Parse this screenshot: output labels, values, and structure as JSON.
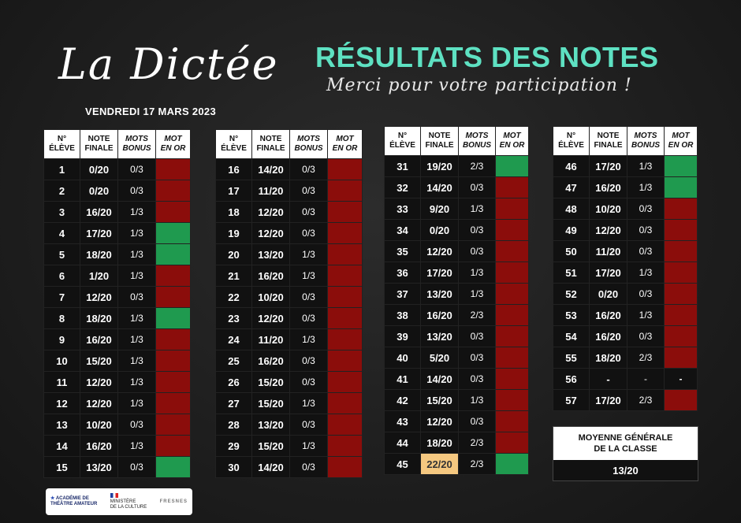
{
  "header": {
    "logo_text": "La Dictée",
    "date": "VENDREDI 17 MARS 2023",
    "title": "RÉSULTATS DES NOTES",
    "subtitle": "Merci pour votre participation !"
  },
  "table_headers": {
    "num": [
      "N°",
      "ÉLÈVE"
    ],
    "note": [
      "NOTE",
      "FINALE"
    ],
    "bonus": [
      "MOTS",
      "BONUS"
    ],
    "gold": [
      "MOT",
      "EN OR"
    ]
  },
  "colors": {
    "red": "#8b0d0b",
    "green": "#1f9a4f",
    "accent": "#5ee1c2",
    "highlight": "#f5c880"
  },
  "tables": [
    {
      "rows": [
        {
          "num": "1",
          "note": "0/20",
          "bonus": "0/3",
          "gold": "red"
        },
        {
          "num": "2",
          "note": "0/20",
          "bonus": "0/3",
          "gold": "red"
        },
        {
          "num": "3",
          "note": "16/20",
          "bonus": "1/3",
          "gold": "red"
        },
        {
          "num": "4",
          "note": "17/20",
          "bonus": "1/3",
          "gold": "green"
        },
        {
          "num": "5",
          "note": "18/20",
          "bonus": "1/3",
          "gold": "green"
        },
        {
          "num": "6",
          "note": "1/20",
          "bonus": "1/3",
          "gold": "red"
        },
        {
          "num": "7",
          "note": "12/20",
          "bonus": "0/3",
          "gold": "red"
        },
        {
          "num": "8",
          "note": "18/20",
          "bonus": "1/3",
          "gold": "green"
        },
        {
          "num": "9",
          "note": "16/20",
          "bonus": "1/3",
          "gold": "red"
        },
        {
          "num": "10",
          "note": "15/20",
          "bonus": "1/3",
          "gold": "red"
        },
        {
          "num": "11",
          "note": "12/20",
          "bonus": "1/3",
          "gold": "red"
        },
        {
          "num": "12",
          "note": "12/20",
          "bonus": "1/3",
          "gold": "red"
        },
        {
          "num": "13",
          "note": "10/20",
          "bonus": "0/3",
          "gold": "red"
        },
        {
          "num": "14",
          "note": "16/20",
          "bonus": "1/3",
          "gold": "red"
        },
        {
          "num": "15",
          "note": "13/20",
          "bonus": "0/3",
          "gold": "green"
        }
      ]
    },
    {
      "rows": [
        {
          "num": "16",
          "note": "14/20",
          "bonus": "0/3",
          "gold": "red"
        },
        {
          "num": "17",
          "note": "11/20",
          "bonus": "0/3",
          "gold": "red"
        },
        {
          "num": "18",
          "note": "12/20",
          "bonus": "0/3",
          "gold": "red"
        },
        {
          "num": "19",
          "note": "12/20",
          "bonus": "0/3",
          "gold": "red"
        },
        {
          "num": "20",
          "note": "13/20",
          "bonus": "1/3",
          "gold": "red"
        },
        {
          "num": "21",
          "note": "16/20",
          "bonus": "1/3",
          "gold": "red"
        },
        {
          "num": "22",
          "note": "10/20",
          "bonus": "0/3",
          "gold": "red"
        },
        {
          "num": "23",
          "note": "12/20",
          "bonus": "0/3",
          "gold": "red"
        },
        {
          "num": "24",
          "note": "11/20",
          "bonus": "1/3",
          "gold": "red"
        },
        {
          "num": "25",
          "note": "16/20",
          "bonus": "0/3",
          "gold": "red"
        },
        {
          "num": "26",
          "note": "15/20",
          "bonus": "0/3",
          "gold": "red"
        },
        {
          "num": "27",
          "note": "15/20",
          "bonus": "1/3",
          "gold": "red"
        },
        {
          "num": "28",
          "note": "13/20",
          "bonus": "0/3",
          "gold": "red"
        },
        {
          "num": "29",
          "note": "15/20",
          "bonus": "1/3",
          "gold": "red"
        },
        {
          "num": "30",
          "note": "14/20",
          "bonus": "0/3",
          "gold": "red"
        }
      ]
    },
    {
      "rows": [
        {
          "num": "31",
          "note": "19/20",
          "bonus": "2/3",
          "gold": "green"
        },
        {
          "num": "32",
          "note": "14/20",
          "bonus": "0/3",
          "gold": "red"
        },
        {
          "num": "33",
          "note": "9/20",
          "bonus": "1/3",
          "gold": "red"
        },
        {
          "num": "34",
          "note": "0/20",
          "bonus": "0/3",
          "gold": "red"
        },
        {
          "num": "35",
          "note": "12/20",
          "bonus": "0/3",
          "gold": "red"
        },
        {
          "num": "36",
          "note": "17/20",
          "bonus": "1/3",
          "gold": "red"
        },
        {
          "num": "37",
          "note": "13/20",
          "bonus": "1/3",
          "gold": "red"
        },
        {
          "num": "38",
          "note": "16/20",
          "bonus": "2/3",
          "gold": "red"
        },
        {
          "num": "39",
          "note": "13/20",
          "bonus": "0/3",
          "gold": "red"
        },
        {
          "num": "40",
          "note": "5/20",
          "bonus": "0/3",
          "gold": "red"
        },
        {
          "num": "41",
          "note": "14/20",
          "bonus": "0/3",
          "gold": "red"
        },
        {
          "num": "42",
          "note": "15/20",
          "bonus": "1/3",
          "gold": "red"
        },
        {
          "num": "43",
          "note": "12/20",
          "bonus": "0/3",
          "gold": "red"
        },
        {
          "num": "44",
          "note": "18/20",
          "bonus": "2/3",
          "gold": "red"
        },
        {
          "num": "45",
          "note": "22/20",
          "bonus": "2/3",
          "gold": "green",
          "highlight": true
        }
      ]
    },
    {
      "rows": [
        {
          "num": "46",
          "note": "17/20",
          "bonus": "1/3",
          "gold": "green"
        },
        {
          "num": "47",
          "note": "16/20",
          "bonus": "1/3",
          "gold": "green"
        },
        {
          "num": "48",
          "note": "10/20",
          "bonus": "0/3",
          "gold": "red"
        },
        {
          "num": "49",
          "note": "12/20",
          "bonus": "0/3",
          "gold": "red"
        },
        {
          "num": "50",
          "note": "11/20",
          "bonus": "0/3",
          "gold": "red"
        },
        {
          "num": "51",
          "note": "17/20",
          "bonus": "1/3",
          "gold": "red"
        },
        {
          "num": "52",
          "note": "0/20",
          "bonus": "0/3",
          "gold": "red"
        },
        {
          "num": "53",
          "note": "16/20",
          "bonus": "1/3",
          "gold": "red"
        },
        {
          "num": "54",
          "note": "16/20",
          "bonus": "0/3",
          "gold": "red"
        },
        {
          "num": "55",
          "note": "18/20",
          "bonus": "2/3",
          "gold": "red"
        },
        {
          "num": "56",
          "note": "-",
          "bonus": "-",
          "gold": "none",
          "gold_text": "-"
        },
        {
          "num": "57",
          "note": "17/20",
          "bonus": "2/3",
          "gold": "red"
        }
      ]
    }
  ],
  "average": {
    "label_line1": "MOYENNE GÉNÉRALE",
    "label_line2": "DE LA CLASSE",
    "value": "13/20"
  },
  "sponsors": {
    "academie_line1": "ACADÉMIE DE",
    "academie_line2": "THÉÂTRE AMATEUR",
    "ministere_line1": "MINISTÈRE",
    "ministere_line2": "DE LA CULTURE",
    "fresnes": "FRESNES"
  }
}
